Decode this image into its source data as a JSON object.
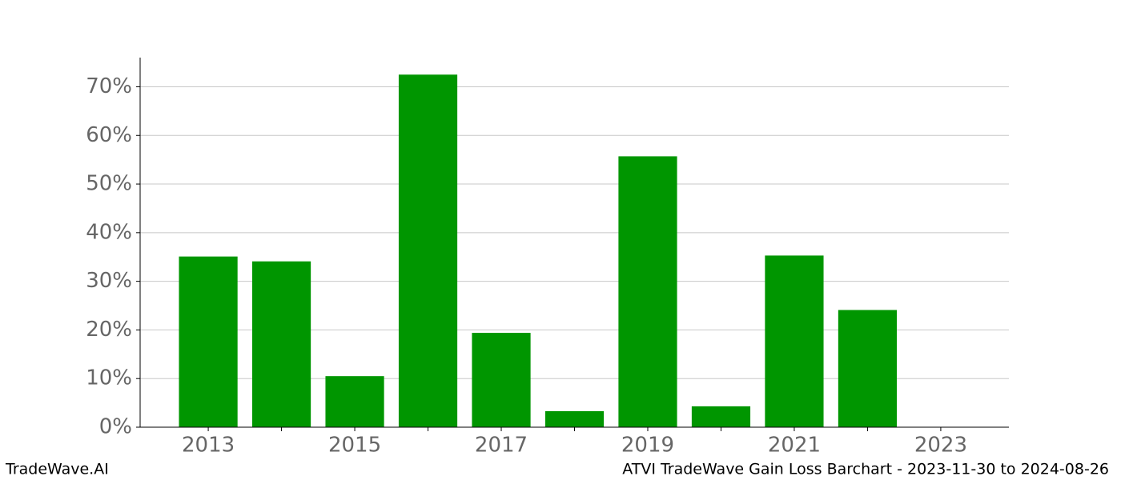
{
  "chart_data": {
    "type": "bar",
    "categories": [
      "2013",
      null,
      "2015",
      null,
      "2017",
      null,
      "2019",
      null,
      "2021",
      null,
      "2023"
    ],
    "values": [
      35.1,
      34.1,
      10.5,
      72.5,
      19.4,
      3.3,
      55.7,
      4.3,
      35.3,
      24.1,
      null
    ],
    "color": "#009600",
    "ylim": [
      0,
      76
    ],
    "yticks": [
      {
        "value": 0,
        "label": "0%"
      },
      {
        "value": 10,
        "label": "10%"
      },
      {
        "value": 20,
        "label": "20%"
      },
      {
        "value": 30,
        "label": "30%"
      },
      {
        "value": 40,
        "label": "40%"
      },
      {
        "value": 50,
        "label": "50%"
      },
      {
        "value": 60,
        "label": "60%"
      },
      {
        "value": 70,
        "label": "70%"
      }
    ],
    "grid": true,
    "footer_left": "TradeWave.AI",
    "footer_right": "ATVI TradeWave Gain Loss Barchart - 2023-11-30 to 2024-08-26"
  }
}
